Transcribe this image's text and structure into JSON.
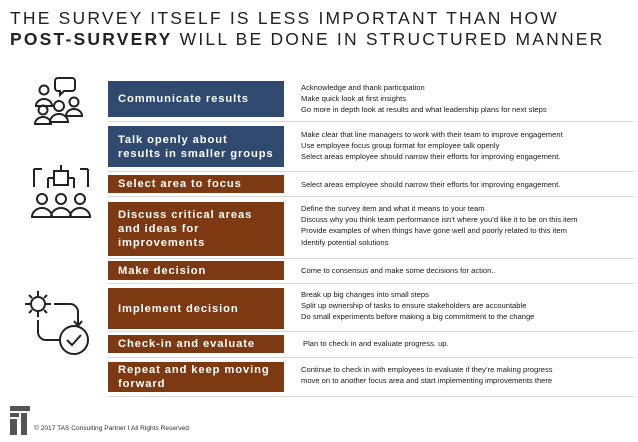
{
  "title": {
    "line1": "THE SURVEY ITSELF IS LESS IMPORTANT THAN HOW",
    "line2_bold": "POST-SURVERY",
    "line2_rest": " WILL BE DONE IN STRUCTURED MANNER"
  },
  "steps": [
    {
      "label": "Communicate results",
      "lines": [
        "Acknowledge and thank participation",
        "Make quick look at first insights",
        "Go more in depth look at results and what leadership plans for next steps"
      ]
    },
    {
      "label": "Talk openly about results in smaller groups",
      "lines": [
        "Make clear that line managers to work with their team to improve engagement",
        "Use employee focus group format for employee talk openly",
        "Select areas employee should narrow their efforts for improving engagement."
      ]
    },
    {
      "label": "Select area to focus",
      "lines": [
        "Select areas employee should narrow their efforts for improving engagement."
      ]
    },
    {
      "label": "Discuss critical areas and ideas for improvements",
      "lines": [
        "Define the survey item and what it means to your team",
        "Discuss why you think team performance isn’t where you’d like it to be on this item",
        "Provide examples of when things have gone well and poorly related to this item",
        "Identify potential solutions"
      ]
    },
    {
      "label": "Make decision",
      "lines": [
        "Come to consensus and make some decisions for action.."
      ]
    },
    {
      "label": "Implement decision",
      "lines": [
        "Break up big changes into small steps",
        "Split up ownership of tasks to ensure stakeholders are accountable",
        "Do small experiments before making a big commitment to the change"
      ]
    },
    {
      "label": "Check-in and evaluate",
      "lines": [
        "Plan to check in and evaluate progress. up."
      ]
    },
    {
      "label": "Repeat and keep moving forward",
      "lines": [
        "Continue to check in with employees to evaluate if they’re making progress",
        "move on to another focus area and start implementing improvements there"
      ]
    }
  ],
  "footer": "© 2017 TAS Consulting Partner  I  All Rights Reserved",
  "colors": {
    "blue": "#2f4a6e",
    "brown": "#7d3a12"
  }
}
